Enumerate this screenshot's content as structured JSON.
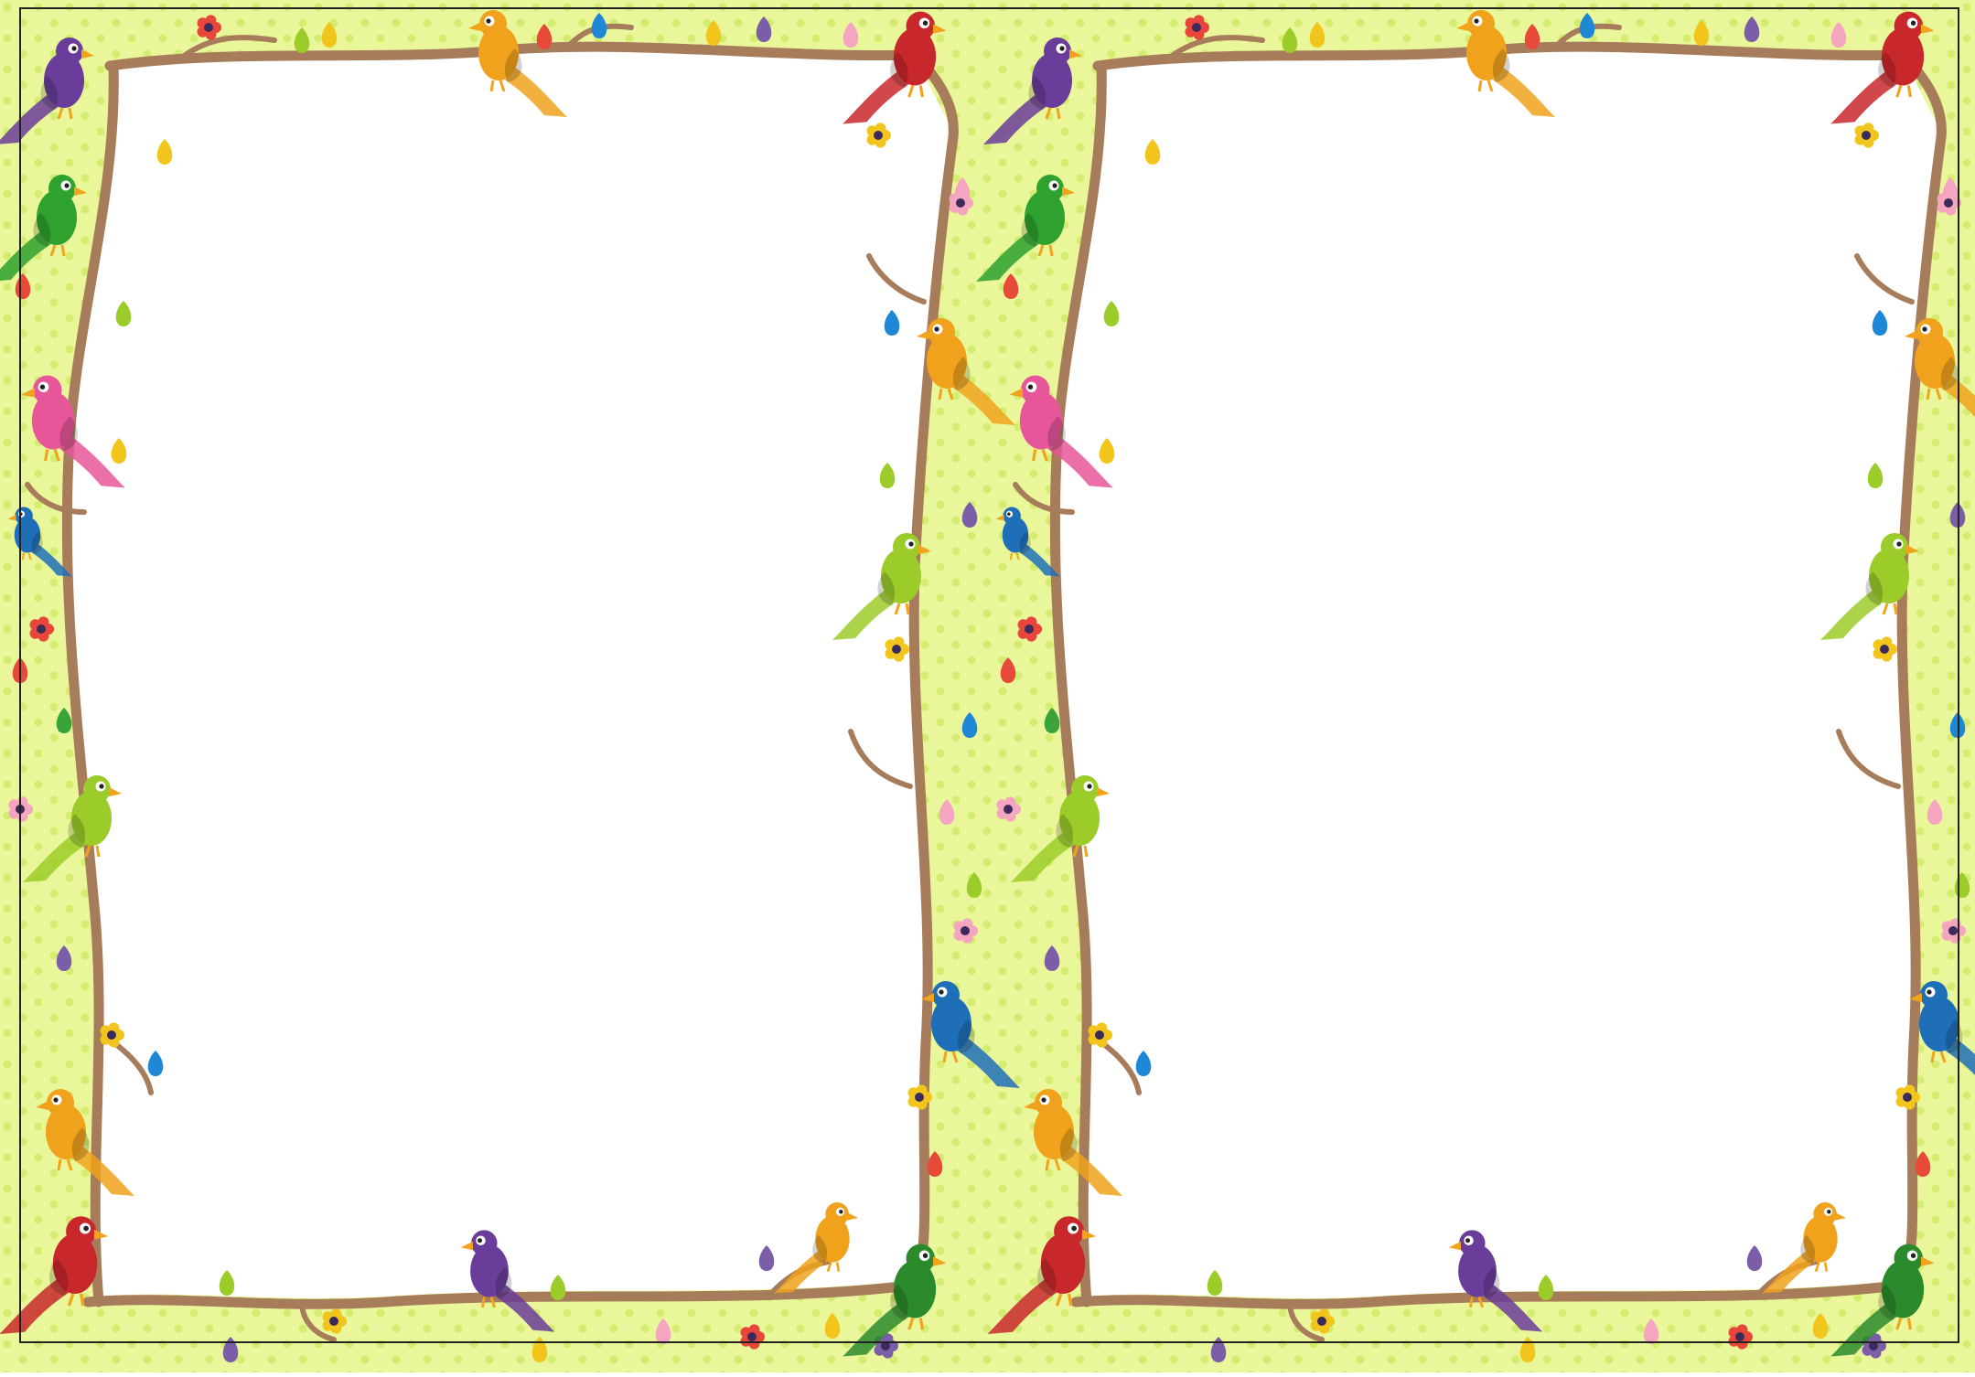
{
  "sheet": {
    "background": "#e9f79a",
    "dot_color": "#d4ec6f",
    "border_color": "#222222",
    "panel_color": "#ffffff",
    "branch_color": "#a67c5b"
  },
  "panels": [
    {
      "id": "left-panel"
    },
    {
      "id": "right-panel"
    }
  ],
  "decor": {
    "bird_colors": [
      "#6a3d9a",
      "#2ea12e",
      "#e8569a",
      "#1f6fb8",
      "#9ccc2a",
      "#f0a21c",
      "#c8282c",
      "#2b8a2b"
    ],
    "leaf_colors": [
      "#f2c51d",
      "#9ccc2a",
      "#1e88d6",
      "#7b5ea7",
      "#e84a3a",
      "#f4a6c0",
      "#3aa33a"
    ],
    "flower_colors": [
      "#e8463a",
      "#f2c51d",
      "#7b5ea7",
      "#f4a6c0"
    ]
  }
}
